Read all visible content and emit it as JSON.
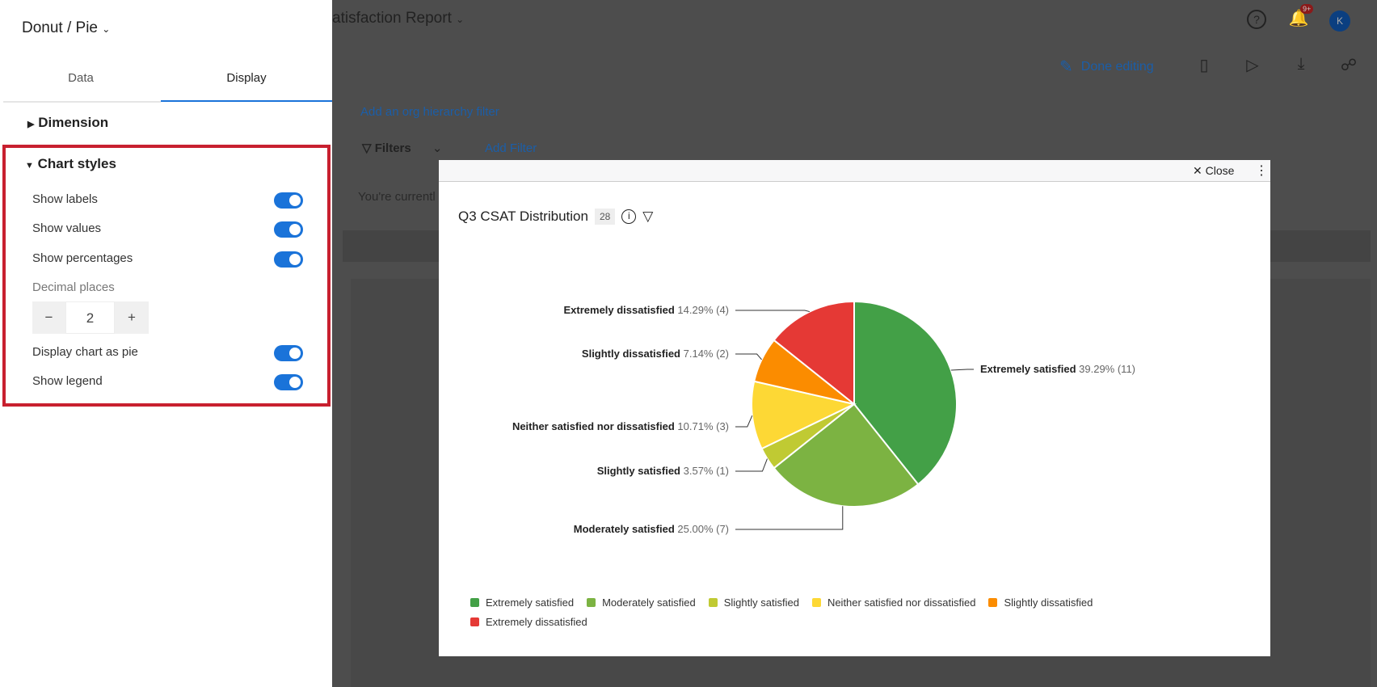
{
  "header": {
    "title": "atisfaction Report",
    "notif_badge": "9+",
    "avatar": "K",
    "done_editing": "Done editing"
  },
  "panel": {
    "widget_type": "Donut / Pie",
    "tabs": [
      {
        "label": "Data"
      },
      {
        "label": "Display",
        "active": true
      }
    ],
    "dimension": "Dimension",
    "chart_styles": "Chart styles",
    "toggles": [
      {
        "label": "Show labels",
        "on": true
      },
      {
        "label": "Show values",
        "on": true
      },
      {
        "label": "Show percentages",
        "on": true
      }
    ],
    "decimal_label": "Decimal places",
    "decimal_value": "2",
    "toggles2": [
      {
        "label": "Display chart as pie",
        "on": true
      },
      {
        "label": "Show legend",
        "on": true
      }
    ]
  },
  "page": {
    "org_filter": "Add an org hierarchy filter",
    "filters": "Filters",
    "add_filter": "Add Filter",
    "notice": "You're currentl"
  },
  "modal": {
    "close": "Close",
    "title": "Q3 CSAT Distribution",
    "count": "28"
  },
  "chart_data": {
    "type": "pie",
    "title": "Q3 CSAT Distribution",
    "legend_position": "bottom",
    "slices": [
      {
        "name": "Extremely satisfied",
        "percent": "39.29%",
        "value": 11,
        "color": "#43a047"
      },
      {
        "name": "Moderately satisfied",
        "percent": "25.00%",
        "value": 7,
        "color": "#7cb342"
      },
      {
        "name": "Slightly satisfied",
        "percent": "3.57%",
        "value": 1,
        "color": "#c0ca33"
      },
      {
        "name": "Neither satisfied nor dissatisfied",
        "percent": "10.71%",
        "value": 3,
        "color": "#fdd835"
      },
      {
        "name": "Slightly dissatisfied",
        "percent": "7.14%",
        "value": 2,
        "color": "#fb8c00"
      },
      {
        "name": "Extremely dissatisfied",
        "percent": "14.29%",
        "value": 4,
        "color": "#e53935"
      }
    ]
  }
}
